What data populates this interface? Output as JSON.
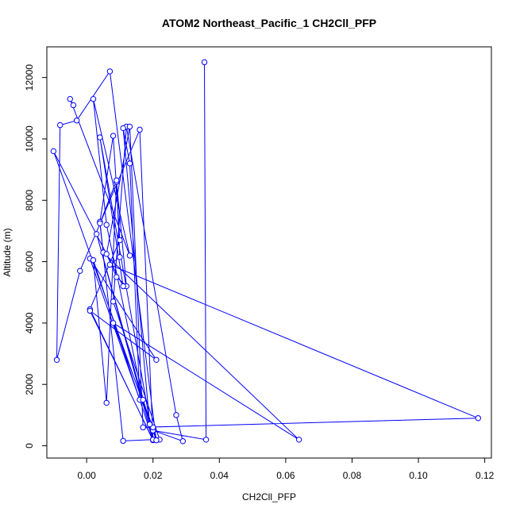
{
  "chart_data": {
    "type": "scatter",
    "title": "ATOM2 Northeast_Pacific_1 CH2Cll_PFP",
    "xlabel": "CH2Cll_PFP",
    "ylabel": "Altitude (m)",
    "xlim": [
      -0.012,
      0.122
    ],
    "ylim": [
      -400,
      13000
    ],
    "x_ticks": [
      0.0,
      0.02,
      0.04,
      0.06,
      0.08,
      0.1,
      0.12
    ],
    "x_tick_labels": [
      "0.00",
      "0.02",
      "0.04",
      "0.06",
      "0.08",
      "0.10",
      "0.12"
    ],
    "y_ticks": [
      0,
      2000,
      4000,
      6000,
      8000,
      10000,
      12000
    ],
    "y_tick_labels": [
      "0",
      "2000",
      "4000",
      "6000",
      "8000",
      "10000",
      "12000"
    ],
    "grid": false,
    "color": "#0000ff",
    "series": [
      {
        "x": [
          0.0355,
          0.036,
          0.02,
          0.029,
          0.027,
          0.012,
          0.008,
          0.022,
          0.02,
          0.016,
          -0.002,
          -0.009,
          -0.008,
          -0.003,
          0.007,
          0.021,
          0.02,
          0.008,
          0.064,
          0.005,
          0.004,
          0.008,
          0.01,
          0.001,
          0.02,
          0.003,
          0.019,
          0.011,
          0.013,
          0.016,
          0.001,
          0.021,
          0.001,
          0.02,
          0.002,
          0.006,
          0.009,
          0.012,
          0.009,
          0.006,
          0.013,
          0.017,
          0.118,
          0.007,
          0.01,
          0.009,
          0.004,
          0.011,
          0.02,
          0.004,
          0.011,
          -0.01,
          0.021,
          0.017,
          0.006,
          0.002,
          0.013,
          -0.005,
          -0.004
        ],
        "y": [
          12500,
          200,
          500,
          150,
          1000,
          10400,
          4700,
          200,
          200,
          10300,
          5700,
          2800,
          10450,
          10600,
          12200,
          180,
          600,
          4000,
          200,
          6300,
          7300,
          10100,
          6700,
          4450,
          180,
          6900,
          700,
          10350,
          9200,
          1500,
          6100,
          2800,
          4400,
          200,
          6050,
          1400,
          8600,
          5200,
          5500,
          6250,
          10400,
          600,
          900,
          5900,
          6150,
          8650,
          7250,
          160,
          200,
          10050,
          5200,
          9600,
          180,
          1500,
          7200,
          11300,
          6200,
          11300,
          11100
        ]
      }
    ]
  }
}
